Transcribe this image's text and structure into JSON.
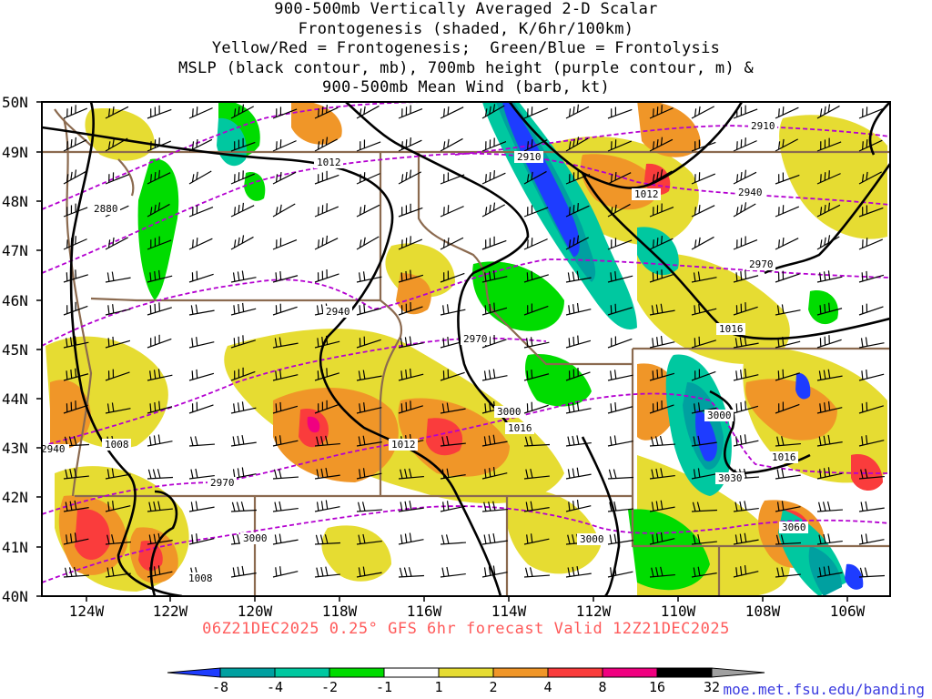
{
  "title_lines": [
    "900-500mb Vertically Averaged 2-D Scalar",
    "Frontogenesis (shaded, K/6hr/100km)",
    "Yellow/Red = Frontogenesis;  Green/Blue = Frontolysis",
    "MSLP (black contour, mb), 700mb height (purple contour, m) &",
    "900-500mb Mean Wind (barb, kt)"
  ],
  "footer_text": "06Z21DEC2025 0.25° GFS 6hr forecast Valid 12Z21DEC2025",
  "credit_text": "moe.met.fsu.edu/banding",
  "map": {
    "lat_labels": [
      "50N",
      "49N",
      "48N",
      "47N",
      "46N",
      "45N",
      "44N",
      "43N",
      "42N",
      "41N",
      "40N"
    ],
    "lon_labels": [
      "124W",
      "122W",
      "120W",
      "118W",
      "116W",
      "114W",
      "112W",
      "110W",
      "108W",
      "106W"
    ],
    "mslp_labels": [
      "1012",
      "1008",
      "1012",
      "1016",
      "1012",
      "1016",
      "1016",
      "1008"
    ],
    "height_labels": [
      "2910",
      "2910",
      "2880",
      "2940",
      "2940",
      "2970",
      "2970",
      "3000",
      "3000",
      "2940",
      "2970",
      "3000",
      "3030",
      "3060",
      "3000"
    ]
  },
  "colorbar": {
    "labels": [
      "-8",
      "-4",
      "-2",
      "-1",
      "1",
      "2",
      "4",
      "8",
      "16",
      "32"
    ],
    "colors": [
      "#1e3cff",
      "#00a0a0",
      "#00c8a0",
      "#00dc00",
      "#ffffff",
      "#e6dc32",
      "#f09628",
      "#fa3c3c",
      "#f00080",
      "#000000",
      "#a0a0a0"
    ]
  },
  "colors": {
    "mslp": "#000000",
    "height": "#b400d0",
    "border": "#8b6a4f"
  }
}
